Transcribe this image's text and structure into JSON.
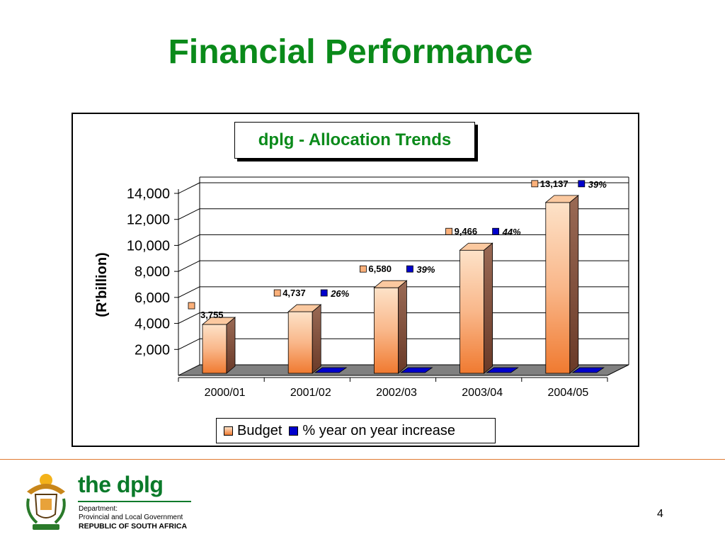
{
  "slide": {
    "title": "Financial Performance",
    "page_number": "4"
  },
  "chart_data": {
    "type": "bar",
    "title": "dplg - Allocation Trends",
    "ylabel": "(R'billion)",
    "xlabel": "",
    "categories": [
      "2000/01",
      "2001/02",
      "2002/03",
      "2003/04",
      "2004/05"
    ],
    "ylim": [
      0,
      14000
    ],
    "yticks": [
      2000,
      4000,
      6000,
      8000,
      10000,
      12000,
      14000
    ],
    "ytick_labels": [
      "2,000",
      "4,000",
      "6,000",
      "8,000",
      "10,000",
      "12,000",
      "14,000"
    ],
    "grid": true,
    "legend_position": "bottom",
    "series": [
      {
        "name": "Budget",
        "values": [
          3755,
          4737,
          6580,
          9466,
          13137
        ],
        "labels": [
          "3,755",
          "4,737",
          "6,580",
          "9,466",
          "13,137"
        ],
        "color": "#f07a30"
      },
      {
        "name": "% year on year increase",
        "values": [
          null,
          26,
          39,
          44,
          39
        ],
        "labels": [
          "",
          "26%",
          "39%",
          "44%",
          "39%"
        ],
        "color": "#0000cc"
      }
    ]
  },
  "footer": {
    "brand": "the dplg",
    "line1": "Department:",
    "line2": "Provincial and Local Government",
    "line3": "REPUBLIC OF SOUTH AFRICA"
  },
  "colors": {
    "title_green": "#0a8a1a",
    "budget_orange": "#f07a30",
    "increase_blue": "#0000cc",
    "accent_rule": "#e07a30"
  }
}
